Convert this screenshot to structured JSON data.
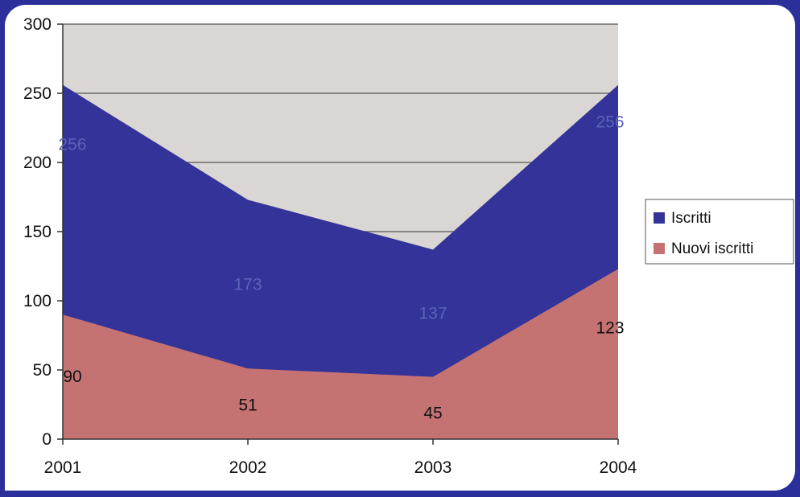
{
  "chart_data": {
    "type": "area",
    "stacked": false,
    "categories": [
      "2001",
      "2002",
      "2003",
      "2004"
    ],
    "series": [
      {
        "name": "Iscritti",
        "values": [
          256,
          173,
          137,
          256
        ],
        "labels": [
          "256",
          "173",
          "137",
          "256"
        ],
        "color": "#333399"
      },
      {
        "name": "Nuovi iscritti",
        "values": [
          90,
          51,
          45,
          123
        ],
        "labels": [
          "90",
          "51",
          "45",
          "123"
        ],
        "color": "#c57272"
      }
    ],
    "ylim": [
      0,
      300
    ],
    "yticks": [
      0,
      50,
      100,
      150,
      200,
      250,
      300
    ],
    "ytick_labels": [
      "0",
      "50",
      "100",
      "150",
      "200",
      "250",
      "300"
    ],
    "grid": true,
    "plot_background": "#d9d6d3",
    "legend_position": "right",
    "title": "",
    "xlabel": "",
    "ylabel": ""
  },
  "colors": {
    "page_background": "#2b2f9a",
    "chart_background": "#ffffff",
    "series_label_on_iscritti": "#5b63b8",
    "series_label_on_nuovi": "#111111"
  }
}
